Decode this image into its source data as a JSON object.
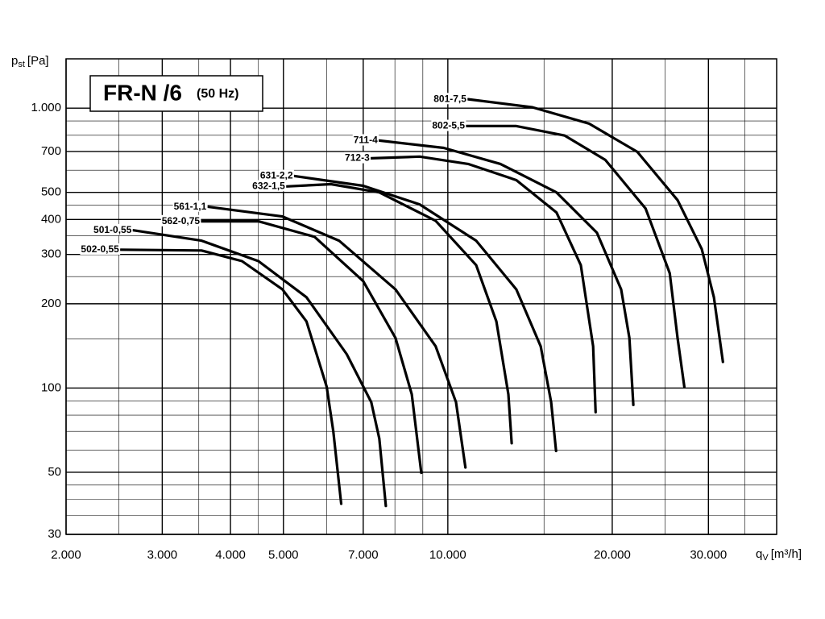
{
  "chart_data": {
    "type": "line",
    "title": {
      "main": "FR-N /6",
      "note": "(50 Hz)"
    },
    "y_label": {
      "symbol": "p",
      "sub": "st",
      "unit": "[Pa]"
    },
    "x_label": {
      "symbol": "q",
      "sub": "V",
      "unit": "[m³/h]"
    },
    "log_x": true,
    "log_y": true,
    "grid": true,
    "xlim": [
      2000,
      40000
    ],
    "ylim": [
      30,
      1500
    ],
    "xticks": [
      {
        "value": 2000,
        "label": "2.000"
      },
      {
        "value": 3000,
        "label": "3.000"
      },
      {
        "value": 4000,
        "label": "4.000"
      },
      {
        "value": 5000,
        "label": "5.000"
      },
      {
        "value": 7000,
        "label": "7.000"
      },
      {
        "value": 10000,
        "label": "10.000"
      },
      {
        "value": 20000,
        "label": "20.000"
      },
      {
        "value": 30000,
        "label": "30.000"
      }
    ],
    "yticks": [
      30,
      50,
      100,
      200,
      300,
      400,
      500,
      700,
      {
        "value": 1000,
        "label": "1.000"
      }
    ],
    "series": [
      {
        "name": "502-0,55",
        "color": "#000000",
        "x": [
          2518,
          3540,
          4200,
          4980,
          5510,
          6000,
          6170,
          6380
        ],
        "values": [
          312,
          310,
          284,
          225,
          173,
          101,
          70,
          38.6
        ]
      },
      {
        "name": "501-0,55",
        "color": "#000000",
        "x": [
          2655,
          3540,
          4500,
          5510,
          6530,
          7240,
          7490,
          7700
        ],
        "values": [
          366,
          336,
          284,
          211,
          132,
          89,
          66,
          37.9
        ]
      },
      {
        "name": "562-0,75",
        "color": "#000000",
        "x": [
          3540,
          4500,
          5700,
          7000,
          8020,
          8590,
          8940
        ],
        "values": [
          394,
          394,
          347,
          241,
          151,
          95,
          49.8
        ]
      },
      {
        "name": "561-1,1",
        "color": "#000000",
        "x": [
          3640,
          4980,
          6320,
          8020,
          9500,
          10350,
          10770
        ],
        "values": [
          444,
          410,
          336,
          225,
          141,
          89,
          52
        ]
      },
      {
        "name": "632-1,5",
        "color": "#000000",
        "x": [
          5070,
          6110,
          7490,
          9500,
          11270,
          12270,
          12910,
          13090
        ],
        "values": [
          525,
          535,
          500,
          396,
          275,
          173,
          95,
          63.5
        ]
      },
      {
        "name": "631-2,2",
        "color": "#000000",
        "x": [
          5240,
          7000,
          8880,
          11270,
          13350,
          14790,
          15460,
          15780
        ],
        "values": [
          572,
          528,
          453,
          336,
          225,
          141,
          89,
          59.6
        ]
      },
      {
        "name": "712-3",
        "color": "#000000",
        "x": [
          7240,
          8880,
          10890,
          13350,
          15810,
          17520,
          18450,
          18650
        ],
        "values": [
          662,
          671,
          632,
          553,
          424,
          275,
          141,
          81.9
        ]
      },
      {
        "name": "711-4",
        "color": "#000000",
        "x": [
          7490,
          9830,
          12480,
          15810,
          18750,
          20770,
          21500,
          21860
        ],
        "values": [
          766,
          721,
          632,
          500,
          359,
          225,
          151,
          87
        ]
      },
      {
        "name": "802-5,5",
        "color": "#000000",
        "x": [
          10820,
          13350,
          16370,
          19420,
          23020,
          25490,
          26340,
          27100
        ],
        "values": [
          863,
          863,
          798,
          653,
          438,
          257,
          151,
          101
        ]
      },
      {
        "name": "801-7,5",
        "color": "#000000",
        "x": [
          10890,
          14290,
          18130,
          22230,
          26340,
          29170,
          30700,
          31890
        ],
        "values": [
          1076,
          1007,
          881,
          698,
          469,
          314,
          211,
          124
        ]
      }
    ]
  }
}
